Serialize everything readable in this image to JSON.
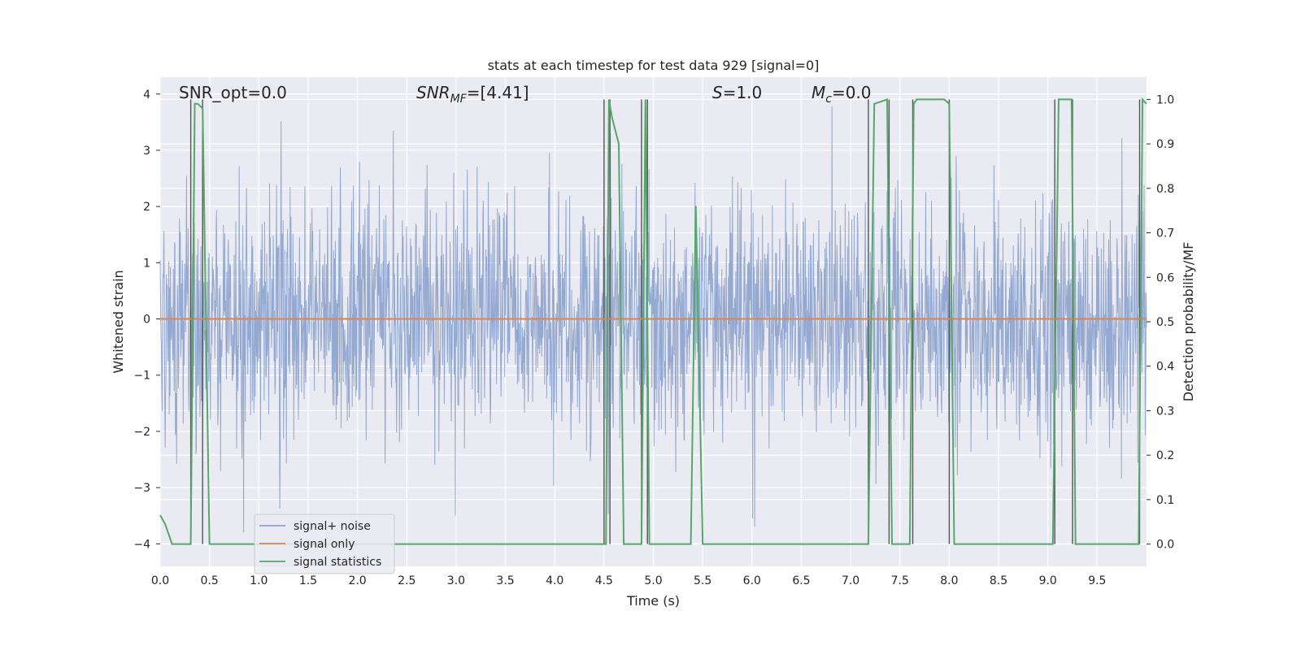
{
  "chart_data": {
    "type": "line",
    "title": "stats at each timestep for test data 929 [signal=0]",
    "xlabel": "Time (s)",
    "ylabel_left": "Whitened strain",
    "ylabel_right": "Detection probability/MF",
    "xlim": [
      0.0,
      10.0
    ],
    "ylim_left": [
      -4.4,
      4.3
    ],
    "ylim_right": [
      -0.05,
      1.05
    ],
    "x_ticks": [
      "0.0",
      "0.5",
      "1.0",
      "1.5",
      "2.0",
      "2.5",
      "3.0",
      "3.5",
      "4.0",
      "4.5",
      "5.0",
      "5.5",
      "6.0",
      "6.5",
      "7.0",
      "7.5",
      "8.0",
      "8.5",
      "9.0",
      "9.5"
    ],
    "y_ticks_left": [
      "−4",
      "−3",
      "−2",
      "−1",
      "0",
      "1",
      "2",
      "3",
      "4"
    ],
    "y_ticks_right": [
      "0.0",
      "0.1",
      "0.2",
      "0.3",
      "0.4",
      "0.5",
      "0.6",
      "0.7",
      "0.8",
      "0.9",
      "1.0"
    ],
    "grid": true,
    "legend_position": "lower-left",
    "annotations": {
      "snr_opt": "SNR_opt=0.0",
      "snr_mf_main": "SNR",
      "snr_mf_sub": "MF",
      "snr_mf_value": "=[4.41]",
      "s_main": "S",
      "s_value": "=1.0",
      "mc_main": "M",
      "mc_sub": "c",
      "mc_value": "=0.0"
    },
    "series": [
      {
        "name": "signal+ noise",
        "color": "#8fa5cf",
        "axis": "left",
        "description_values": "whitened noise, roughly normal, amplitude mostly within ±2.5, peaks near ±3.8"
      },
      {
        "name": "signal only",
        "color": "#dd8452",
        "axis": "left",
        "x": [
          0.0,
          10.0
        ],
        "y": [
          0.0,
          0.0
        ]
      },
      {
        "name": "signal statistics",
        "color": "#55a868",
        "axis": "right",
        "x": [
          0.0,
          0.05,
          0.12,
          0.31,
          0.35,
          0.38,
          0.43,
          0.5,
          4.52,
          4.55,
          4.58,
          4.65,
          4.7,
          4.88,
          4.92,
          4.96,
          5.0,
          5.05,
          5.38,
          5.43,
          5.5,
          7.18,
          7.24,
          7.37,
          7.42,
          7.6,
          7.64,
          7.67,
          7.95,
          8.0,
          8.05,
          9.05,
          9.11,
          9.24,
          9.28,
          9.92,
          9.96,
          10.0
        ],
        "y": [
          0.065,
          0.045,
          0.0,
          0.0,
          0.99,
          0.99,
          0.98,
          0.0,
          0.0,
          1.0,
          0.96,
          0.9,
          0.0,
          0.0,
          1.0,
          0.0,
          0.0,
          0.0,
          0.0,
          0.76,
          0.0,
          0.0,
          0.99,
          1.0,
          0.0,
          0.0,
          0.99,
          1.0,
          1.0,
          0.99,
          0.0,
          0.0,
          1.0,
          1.0,
          0.0,
          0.0,
          1.0,
          0.99
        ]
      }
    ],
    "event_markers_x": [
      0.31,
      0.43,
      4.5,
      4.56,
      4.88,
      4.94,
      7.18,
      7.39,
      7.63,
      8.0,
      9.07,
      9.25,
      9.93
    ]
  }
}
